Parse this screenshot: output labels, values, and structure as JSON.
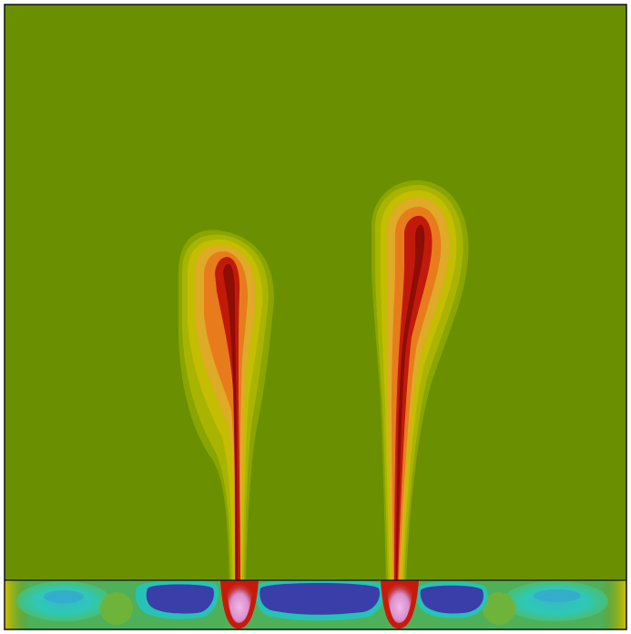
{
  "figure": {
    "kind": "contour-field",
    "palette": {
      "background": "#6a8f00",
      "low_blue": "#3a3fb0",
      "cyan": "#2cc7b8",
      "yellow": "#c8c400",
      "orange": "#e88a1a",
      "red": "#c21a0a",
      "pink": "#e6a3d6",
      "frame": "#111111"
    }
  }
}
